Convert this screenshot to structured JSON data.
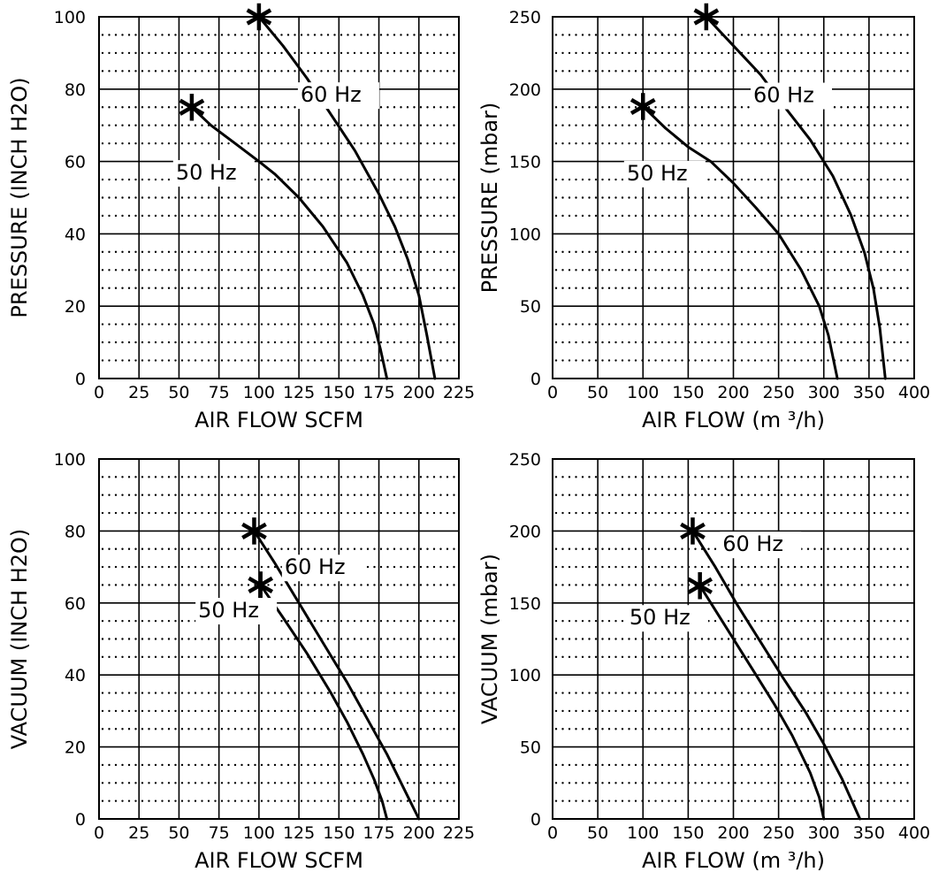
{
  "chart_data": [
    {
      "type": "line",
      "title": "",
      "xlabel": "AIR FLOW SCFM",
      "ylabel": "PRESSURE (INCH H2O)",
      "xlim": [
        0,
        225
      ],
      "ylim": [
        0,
        100
      ],
      "x_ticks": [
        0,
        25,
        50,
        75,
        100,
        125,
        150,
        175,
        200,
        225
      ],
      "y_ticks": [
        0,
        20,
        40,
        60,
        80,
        100
      ],
      "x_tick_labels": [
        "0",
        "25",
        "50",
        "75",
        "100",
        "125",
        "150",
        "175",
        "200",
        "225"
      ],
      "y_tick_labels": [
        "0",
        "20",
        "40",
        "60",
        "80",
        "100"
      ],
      "grid": true,
      "series": [
        {
          "name": "60 Hz",
          "x": [
            100,
            115,
            130,
            145,
            160,
            175,
            185,
            193,
            200,
            205,
            210
          ],
          "y": [
            100,
            92,
            83,
            73,
            63,
            51,
            42,
            33,
            23,
            12,
            0
          ],
          "marker": {
            "x": 100,
            "y": 100
          },
          "label_at": {
            "x": 126,
            "y": 76.5
          }
        },
        {
          "name": "50 Hz",
          "x": [
            58,
            70,
            85,
            100,
            110,
            125,
            140,
            155,
            165,
            172,
            176,
            180
          ],
          "y": [
            75,
            70,
            65,
            60,
            56.5,
            50,
            42,
            32,
            23,
            15,
            8,
            0
          ],
          "marker": {
            "x": 58,
            "y": 75
          },
          "label_at": {
            "x": 48,
            "y": 55
          }
        }
      ]
    },
    {
      "type": "line",
      "title": "",
      "xlabel": "AIR FLOW (m ³/h)",
      "ylabel": "PRESSURE (mbar)",
      "xlim": [
        0,
        400
      ],
      "ylim": [
        0,
        250
      ],
      "x_ticks": [
        0,
        50,
        100,
        150,
        200,
        250,
        300,
        350,
        400
      ],
      "y_ticks": [
        0,
        50,
        100,
        150,
        200,
        250
      ],
      "x_tick_labels": [
        "0",
        "50",
        "100",
        "150",
        "200",
        "250",
        "300",
        "350",
        "400"
      ],
      "y_tick_labels": [
        "0",
        "50",
        "100",
        "150",
        "200",
        "250"
      ],
      "grid": true,
      "series": [
        {
          "name": "60 Hz",
          "x": [
            170,
            200,
            230,
            260,
            285,
            310,
            330,
            345,
            355,
            362,
            368
          ],
          "y": [
            250,
            230,
            210,
            185,
            165,
            140,
            113,
            87,
            62,
            35,
            0
          ],
          "marker": {
            "x": 170,
            "y": 250
          },
          "label_at": {
            "x": 222,
            "y": 191
          }
        },
        {
          "name": "50 Hz",
          "x": [
            100,
            125,
            150,
            175,
            200,
            225,
            250,
            275,
            295,
            305,
            310,
            315
          ],
          "y": [
            188,
            173,
            160,
            150,
            135,
            118,
            100,
            75,
            50,
            30,
            15,
            0
          ],
          "marker": {
            "x": 100,
            "y": 188
          },
          "label_at": {
            "x": 82,
            "y": 137
          }
        }
      ]
    },
    {
      "type": "line",
      "title": "",
      "xlabel": "AIR FLOW SCFM",
      "ylabel": "VACUUM (INCH H2O)",
      "xlim": [
        0,
        225
      ],
      "ylim": [
        0,
        100
      ],
      "x_ticks": [
        0,
        25,
        50,
        75,
        100,
        125,
        150,
        175,
        200,
        225
      ],
      "y_ticks": [
        0,
        20,
        40,
        60,
        80,
        100
      ],
      "x_tick_labels": [
        "0",
        "25",
        "50",
        "75",
        "100",
        "125",
        "150",
        "175",
        "200",
        "225"
      ],
      "y_tick_labels": [
        "0",
        "20",
        "40",
        "60",
        "80",
        "100"
      ],
      "grid": true,
      "series": [
        {
          "name": "60 Hz",
          "x": [
            97,
            110,
            125,
            140,
            155,
            170,
            180,
            190,
            200
          ],
          "y": [
            80,
            71,
            60,
            49,
            38,
            26,
            18,
            9,
            0
          ],
          "marker": {
            "x": 97,
            "y": 80
          },
          "label_at": {
            "x": 116,
            "y": 68
          }
        },
        {
          "name": "50 Hz",
          "x": [
            101,
            115,
            130,
            145,
            155,
            165,
            172,
            177,
            180
          ],
          "y": [
            65,
            56,
            46,
            35,
            27,
            18,
            11,
            5,
            0
          ],
          "marker": {
            "x": 101,
            "y": 65
          },
          "label_at": {
            "x": 62,
            "y": 56
          }
        }
      ]
    },
    {
      "type": "line",
      "title": "",
      "xlabel": "AIR FLOW (m ³/h)",
      "ylabel": "VACUUM (mbar)",
      "xlim": [
        0,
        400
      ],
      "ylim": [
        0,
        250
      ],
      "x_ticks": [
        0,
        50,
        100,
        150,
        200,
        250,
        300,
        350,
        400
      ],
      "y_ticks": [
        0,
        50,
        100,
        150,
        200,
        250
      ],
      "x_tick_labels": [
        "0",
        "50",
        "100",
        "150",
        "200",
        "250",
        "300",
        "350",
        "400"
      ],
      "y_tick_labels": [
        "0",
        "50",
        "100",
        "150",
        "200",
        "250"
      ],
      "grid": true,
      "series": [
        {
          "name": "60 Hz",
          "x": [
            155,
            180,
            205,
            230,
            255,
            280,
            300,
            320,
            340
          ],
          "y": [
            200,
            175,
            148,
            123,
            98,
            74,
            52,
            28,
            0
          ],
          "marker": {
            "x": 155,
            "y": 200
          },
          "label_at": {
            "x": 188,
            "y": 186
          }
        },
        {
          "name": "50 Hz",
          "x": [
            163,
            185,
            205,
            225,
            245,
            265,
            285,
            295,
            300
          ],
          "y": [
            162,
            140,
            120,
            100,
            80,
            58,
            32,
            15,
            0
          ],
          "marker": {
            "x": 163,
            "y": 162
          },
          "label_at": {
            "x": 85,
            "y": 135
          }
        }
      ]
    }
  ]
}
